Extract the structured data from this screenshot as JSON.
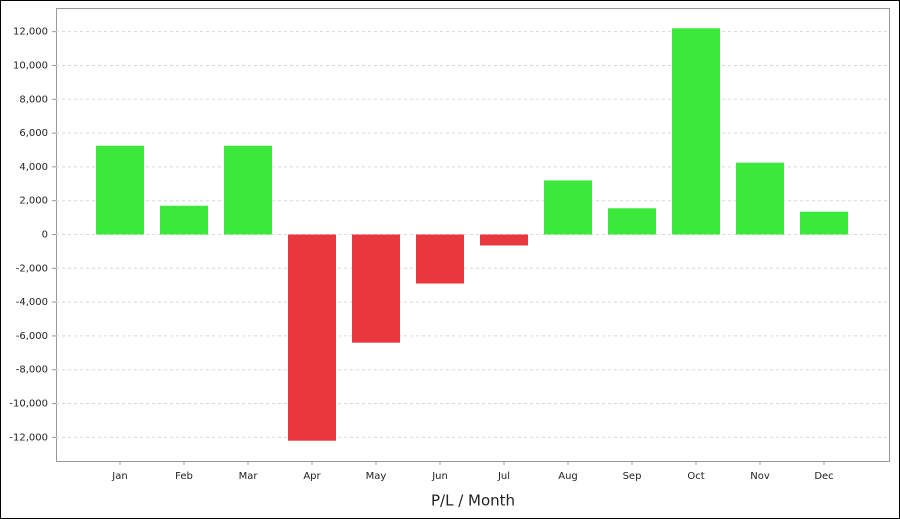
{
  "chart_data": {
    "type": "bar",
    "x_label": "P/L / Month",
    "categories": [
      "Jan",
      "Feb",
      "Mar",
      "Apr",
      "May",
      "Jun",
      "Jul",
      "Aug",
      "Sep",
      "Oct",
      "Nov",
      "Dec"
    ],
    "values": [
      5250,
      1700,
      5250,
      -12200,
      -6400,
      -2900,
      -650,
      3200,
      1550,
      12200,
      4250,
      1350
    ],
    "positive_color": "#3de83d",
    "negative_color": "#e8383d",
    "ylim": [
      -13400,
      13400
    ],
    "yticks": [
      {
        "value": -12000,
        "label": "-12,000"
      },
      {
        "value": -10000,
        "label": "-10,000"
      },
      {
        "value": -8000,
        "label": "-8,000"
      },
      {
        "value": -6000,
        "label": "-6,000"
      },
      {
        "value": -4000,
        "label": "-4,000"
      },
      {
        "value": -2000,
        "label": "-2,000"
      },
      0,
      {
        "value": 2000,
        "label": "2,000"
      },
      {
        "value": 4000,
        "label": "4,000"
      },
      {
        "value": 6000,
        "label": "6,000"
      },
      {
        "value": 8000,
        "label": "8,000"
      },
      {
        "value": 10000,
        "label": "10,000"
      },
      {
        "value": 12000,
        "label": "12,000"
      }
    ],
    "grid": true
  }
}
